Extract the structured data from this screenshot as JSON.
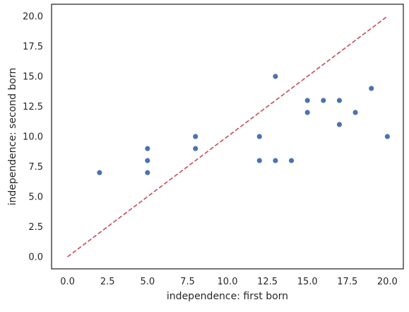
{
  "chart_data": {
    "type": "scatter",
    "title": "",
    "xlabel": "independence: first born",
    "ylabel": "independence: second born",
    "xlim": [
      -1,
      21
    ],
    "ylim": [
      -1,
      21
    ],
    "x_ticks": [
      0.0,
      2.5,
      5.0,
      7.5,
      10.0,
      12.5,
      15.0,
      17.5,
      20.0
    ],
    "x_tick_labels": [
      "0.0",
      "2.5",
      "5.0",
      "7.5",
      "10.0",
      "12.5",
      "15.0",
      "17.5",
      "20.0"
    ],
    "y_ticks": [
      0.0,
      2.5,
      5.0,
      7.5,
      10.0,
      12.5,
      15.0,
      17.5,
      20.0
    ],
    "y_tick_labels": [
      "0.0",
      "2.5",
      "5.0",
      "7.5",
      "10.0",
      "12.5",
      "15.0",
      "17.5",
      "20.0"
    ],
    "grid": false,
    "points": [
      {
        "x": 2,
        "y": 7
      },
      {
        "x": 5,
        "y": 9
      },
      {
        "x": 5,
        "y": 8
      },
      {
        "x": 5,
        "y": 7
      },
      {
        "x": 8,
        "y": 10
      },
      {
        "x": 8,
        "y": 9
      },
      {
        "x": 12,
        "y": 10
      },
      {
        "x": 12,
        "y": 8
      },
      {
        "x": 13,
        "y": 15
      },
      {
        "x": 13,
        "y": 8
      },
      {
        "x": 14,
        "y": 8
      },
      {
        "x": 15,
        "y": 13
      },
      {
        "x": 15,
        "y": 12
      },
      {
        "x": 16,
        "y": 13
      },
      {
        "x": 17,
        "y": 13
      },
      {
        "x": 17,
        "y": 11
      },
      {
        "x": 18,
        "y": 12
      },
      {
        "x": 19,
        "y": 14
      },
      {
        "x": 20,
        "y": 10
      }
    ],
    "reference_line": {
      "x": [
        0,
        20
      ],
      "y": [
        0,
        20
      ],
      "style": "dashed"
    },
    "colors": {
      "points": "#4c72b0",
      "reference_line": "#c44e52",
      "axes": "#262626"
    }
  }
}
